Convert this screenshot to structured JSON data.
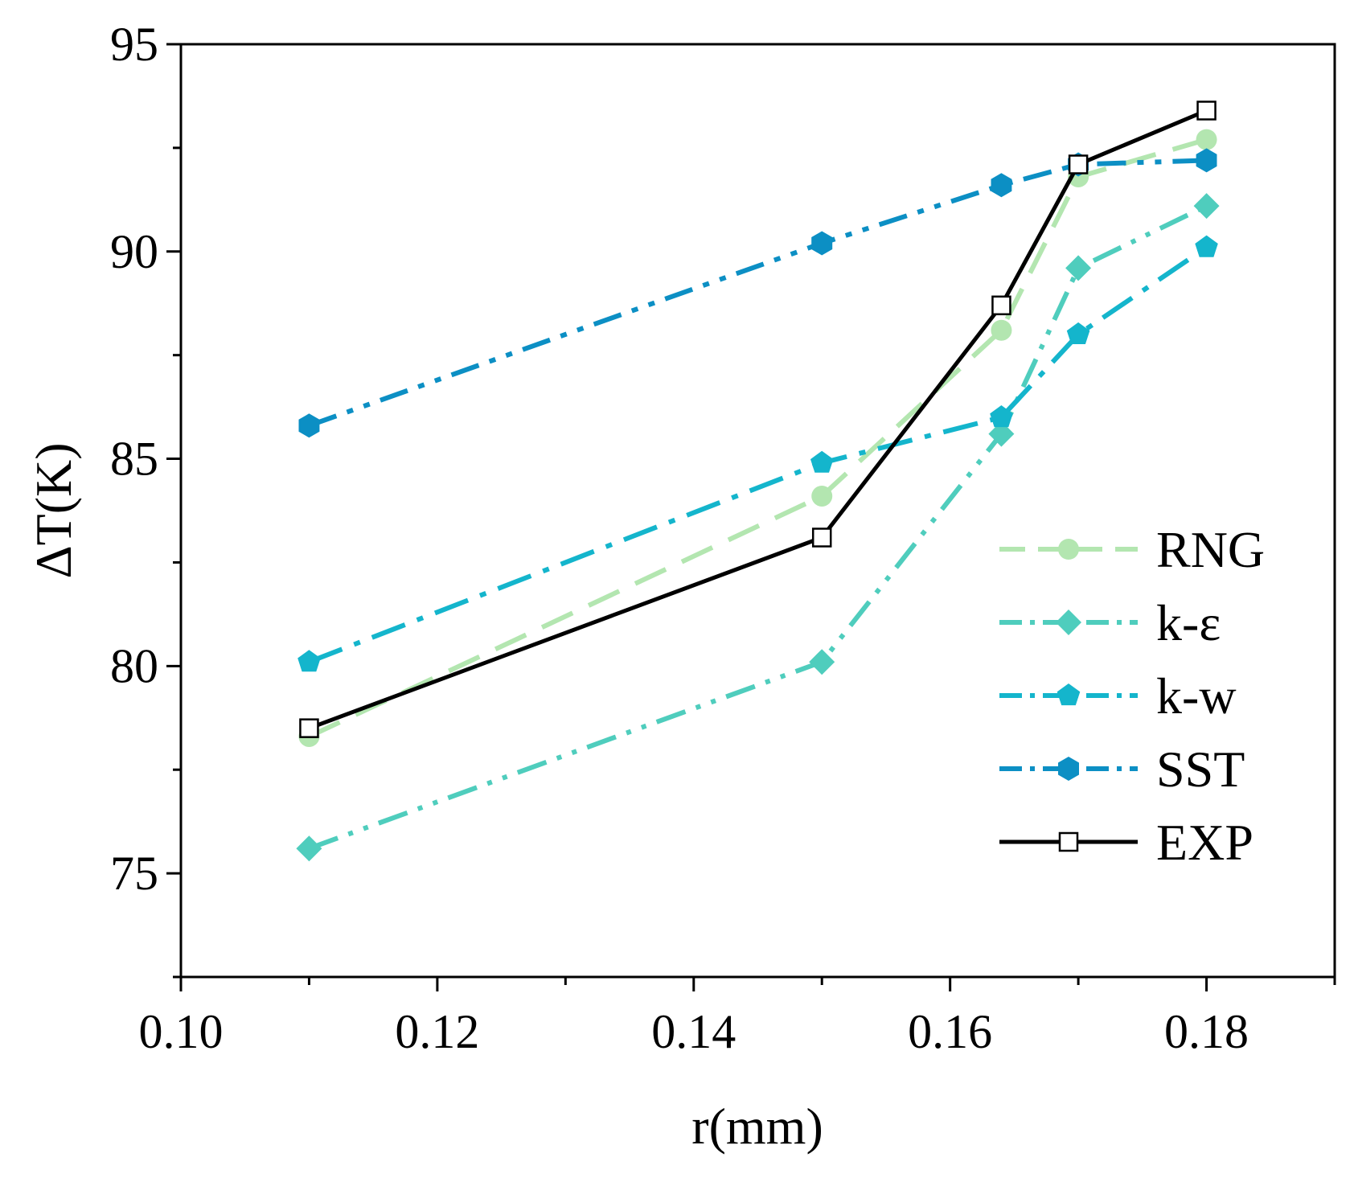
{
  "chart_data": {
    "type": "line",
    "title": "",
    "xlabel": "r(mm)",
    "ylabel": "ΔT(K)",
    "xlim": [
      0.1,
      0.19
    ],
    "ylim": [
      72.5,
      95
    ],
    "xticks": [
      {
        "value": 0.1,
        "label": "0.10"
      },
      {
        "value": 0.12,
        "label": "0.12"
      },
      {
        "value": 0.14,
        "label": "0.14"
      },
      {
        "value": 0.16,
        "label": "0.16"
      },
      {
        "value": 0.18,
        "label": "0.18"
      }
    ],
    "yticks": [
      {
        "value": 75,
        "label": "75"
      },
      {
        "value": 80,
        "label": "80"
      },
      {
        "value": 85,
        "label": "85"
      },
      {
        "value": 90,
        "label": "90"
      },
      {
        "value": 95,
        "label": "95"
      }
    ],
    "x": [
      0.11,
      0.15,
      0.164,
      0.17,
      0.18
    ],
    "series": [
      {
        "name": "RNG",
        "values": [
          78.3,
          84.1,
          88.1,
          91.8,
          92.7
        ],
        "color": "#b3e6b0",
        "marker": "circle",
        "dash": "dash"
      },
      {
        "name": "k-ε",
        "values": [
          75.6,
          80.1,
          85.6,
          89.6,
          91.1
        ],
        "color": "#4fcdbd",
        "marker": "diamond",
        "dash": "dashdotdot"
      },
      {
        "name": "k-w",
        "values": [
          80.1,
          84.9,
          86.0,
          88.0,
          90.1
        ],
        "color": "#14b5cc",
        "marker": "pentagon",
        "dash": "dashdot"
      },
      {
        "name": "SST",
        "values": [
          85.8,
          90.2,
          91.6,
          92.1,
          92.2
        ],
        "color": "#0c8fc4",
        "marker": "hexagon",
        "dash": "dashdotdot2"
      },
      {
        "name": "EXP",
        "values": [
          78.5,
          83.1,
          88.7,
          92.1,
          93.4
        ],
        "color": "#000000",
        "marker": "square",
        "dash": "solid"
      }
    ],
    "legend_position": "lower-right",
    "grid": false
  }
}
